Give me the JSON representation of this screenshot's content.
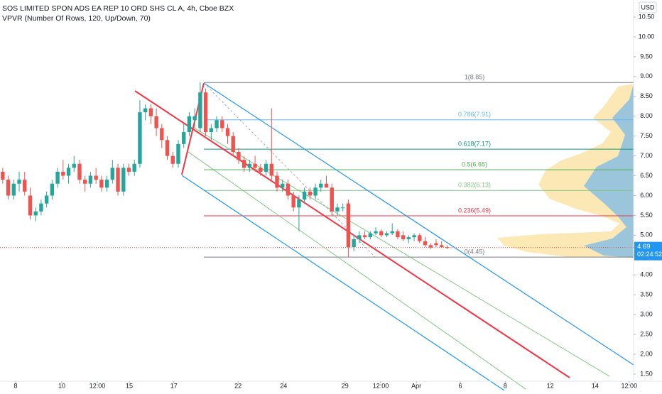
{
  "chart_data": {
    "type": "candlestick",
    "title": "SOS LIMITED SPON ADS EA REP 10 ORD SHS CL A, 4h, Cboe BZX",
    "subtitle": "VPVR (Number Of Rows, 120, Up/Down, 70)",
    "currency": "USD",
    "up_color": "#26a69a",
    "down_color": "#ef5350",
    "open": [
      6.6,
      6.4,
      6.0,
      6.3,
      6.4,
      6.0,
      5.5,
      5.6,
      5.8,
      6.0,
      6.3,
      6.6,
      6.5,
      6.7,
      6.8,
      6.4,
      6.3,
      6.5,
      6.4,
      6.2,
      6.4,
      6.7,
      6.1,
      6.7,
      6.6,
      6.8,
      8.1,
      8.2,
      8.0,
      7.7,
      7.4,
      7.0,
      6.8,
      7.3,
      7.6,
      7.9,
      7.7,
      8.6,
      7.6,
      7.7,
      7.9,
      7.7,
      7.5,
      7.1,
      6.9,
      6.7,
      6.8,
      6.7,
      6.6,
      6.8,
      6.5,
      6.2,
      6.3,
      6.0,
      5.7,
      5.9,
      6.1,
      6.0,
      6.2,
      6.3,
      6.2,
      5.6,
      5.7,
      5.8,
      4.7,
      4.9,
      5.0,
      4.95,
      5.05,
      5.1,
      5.0,
      5.05,
      5.1,
      5.0,
      4.9,
      4.95,
      5.0,
      4.85,
      4.75,
      4.8,
      4.75,
      4.7
    ],
    "high": [
      6.7,
      6.5,
      6.4,
      6.6,
      6.6,
      6.2,
      5.7,
      5.9,
      6.1,
      6.4,
      6.7,
      6.9,
      6.8,
      7.0,
      6.9,
      6.5,
      6.6,
      6.7,
      6.5,
      6.5,
      6.9,
      6.8,
      6.8,
      6.8,
      6.9,
      8.4,
      8.3,
      8.3,
      8.2,
      7.8,
      7.5,
      7.1,
      7.4,
      7.8,
      8.1,
      8.2,
      8.85,
      8.7,
      7.8,
      8.0,
      8.0,
      7.8,
      7.6,
      7.2,
      7.0,
      6.9,
      7.0,
      6.8,
      6.9,
      8.2,
      6.6,
      6.4,
      6.4,
      6.1,
      6.0,
      6.2,
      6.2,
      6.3,
      6.4,
      6.5,
      6.3,
      5.8,
      5.8,
      5.9,
      5.0,
      5.1,
      5.1,
      5.1,
      5.2,
      5.15,
      5.1,
      5.3,
      5.15,
      5.1,
      5.0,
      5.05,
      5.05,
      4.95,
      4.8,
      4.9,
      4.85,
      4.75
    ],
    "low": [
      6.3,
      5.9,
      5.9,
      6.1,
      6.0,
      5.4,
      5.35,
      5.5,
      5.7,
      5.9,
      6.2,
      6.4,
      6.3,
      6.6,
      6.3,
      6.1,
      6.2,
      6.3,
      6.1,
      6.1,
      6.3,
      6.0,
      6.0,
      6.5,
      6.5,
      6.7,
      7.9,
      7.8,
      7.5,
      7.2,
      6.9,
      6.7,
      6.7,
      7.2,
      7.5,
      7.7,
      7.6,
      7.5,
      7.4,
      7.6,
      7.6,
      7.3,
      7.0,
      6.8,
      6.6,
      6.6,
      6.6,
      6.5,
      6.5,
      6.4,
      6.1,
      6.1,
      5.9,
      5.6,
      5.1,
      5.8,
      5.9,
      5.9,
      6.1,
      6.2,
      5.5,
      5.5,
      5.6,
      4.45,
      4.6,
      4.8,
      4.9,
      4.9,
      5.0,
      4.95,
      4.95,
      5.0,
      4.9,
      4.85,
      4.8,
      4.85,
      4.8,
      4.7,
      4.65,
      4.7,
      4.68,
      4.65
    ],
    "close": [
      6.4,
      6.0,
      6.3,
      6.4,
      6.1,
      5.5,
      5.6,
      5.8,
      6.0,
      6.3,
      6.6,
      6.5,
      6.7,
      6.8,
      6.4,
      6.3,
      6.5,
      6.4,
      6.2,
      6.4,
      6.7,
      6.1,
      6.7,
      6.6,
      6.8,
      8.1,
      8.2,
      8.0,
      7.7,
      7.4,
      7.0,
      6.8,
      7.3,
      7.6,
      8.0,
      8.0,
      8.6,
      7.6,
      7.7,
      7.9,
      7.7,
      7.5,
      7.1,
      6.9,
      6.7,
      6.8,
      6.7,
      6.6,
      6.8,
      6.5,
      6.2,
      6.3,
      6.0,
      5.7,
      5.9,
      6.1,
      6.0,
      6.2,
      6.3,
      6.2,
      5.6,
      5.7,
      5.7,
      4.7,
      4.9,
      5.0,
      4.95,
      5.05,
      5.1,
      5.0,
      5.05,
      5.1,
      4.95,
      4.9,
      4.95,
      5.0,
      4.85,
      4.75,
      4.69,
      4.75,
      4.7,
      4.69
    ],
    "last_price": 4.69,
    "countdown": "02:24:52",
    "fib_levels": [
      {
        "label": "1(8.85)",
        "price": 8.85,
        "color": "#787b86"
      },
      {
        "label": "0.786(7.91)",
        "price": 7.91,
        "color": "#64b5f6"
      },
      {
        "label": "0.618(7.17)",
        "price": 7.17,
        "color": "#089981"
      },
      {
        "label": "0.5(6.65)",
        "price": 6.65,
        "color": "#4caf50"
      },
      {
        "label": "0.382(6.13)",
        "price": 6.13,
        "color": "#81c784"
      },
      {
        "label": "0.236(5.49)",
        "price": 5.49,
        "color": "#f23645"
      },
      {
        "label": "0(4.45)",
        "price": 4.45,
        "color": "#787b86"
      }
    ],
    "xlim": [
      -0.5,
      115
    ],
    "xticks": [
      {
        "value": 2.35,
        "label": "8"
      },
      {
        "value": 10.76,
        "label": "10"
      },
      {
        "value": 17.24,
        "label": "12:00"
      },
      {
        "value": 23.07,
        "label": "15"
      },
      {
        "value": 31.2,
        "label": "17"
      },
      {
        "value": 42.9,
        "label": "22"
      },
      {
        "value": 51.2,
        "label": "24"
      },
      {
        "value": 62.4,
        "label": "29"
      },
      {
        "value": 68.9,
        "label": "12:00"
      },
      {
        "value": 75.4,
        "label": "Apr"
      },
      {
        "value": 83.4,
        "label": "6"
      },
      {
        "value": 91.6,
        "label": "8"
      },
      {
        "value": 99.8,
        "label": "12"
      },
      {
        "value": 108.0,
        "label": "14"
      },
      {
        "value": 114.2,
        "label": "12:00"
      }
    ],
    "ylim": [
      1.32,
      10.93
    ],
    "yticks": [
      {
        "value": 1.5,
        "label": "1.50"
      },
      {
        "value": 2,
        "label": "2.00"
      },
      {
        "value": 2.5,
        "label": "2.50"
      },
      {
        "value": 3,
        "label": "3.00"
      },
      {
        "value": 3.5,
        "label": "3.50"
      },
      {
        "value": 4,
        "label": "4.00"
      },
      {
        "value": 4.5,
        "label": "4.50"
      },
      {
        "value": 5,
        "label": "5.00"
      },
      {
        "value": 5.5,
        "label": "5.50"
      },
      {
        "value": 6,
        "label": "6.00"
      },
      {
        "value": 6.5,
        "label": "6.50"
      },
      {
        "value": 7,
        "label": "7.00"
      },
      {
        "value": 7.5,
        "label": "7.50"
      },
      {
        "value": 8,
        "label": "8.00"
      },
      {
        "value": 8.5,
        "label": "8.50"
      },
      {
        "value": 9,
        "label": "9.00"
      },
      {
        "value": 9.5,
        "label": "9.50"
      },
      {
        "value": 10,
        "label": "10.00"
      },
      {
        "value": 10.5,
        "label": "10.50"
      }
    ]
  }
}
